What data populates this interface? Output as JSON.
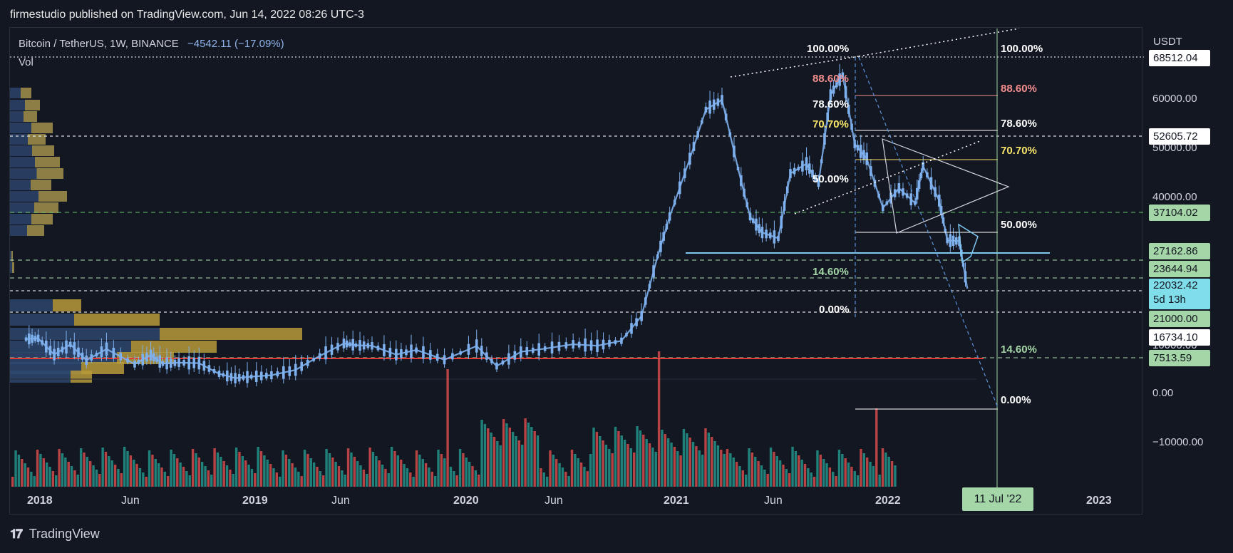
{
  "header": {
    "published": "firmestudio published on TradingView.com, Jun 14, 2022 08:26 UTC-3"
  },
  "legend": {
    "symbol": "Bitcoin / TetherUS, 1W, BINANCE",
    "change": "−4542.11 (−17.09%)",
    "volume_label": "Vol"
  },
  "footer": {
    "brand": "TradingView"
  },
  "colors": {
    "background": "#131722",
    "up": "#7eb0ee",
    "down": "#7eb0ee",
    "vol_up": "#26a69a",
    "vol_down": "#ef5350",
    "fib_green": "#a5d6a7",
    "fib_red": "#f48f8f",
    "fib_yellow": "#f5e56b",
    "support": "#e53935",
    "accent_line": "#80c8f0"
  },
  "chart_data": {
    "type": "candlestick",
    "symbol": "BTCUSDT",
    "interval": "1W",
    "y_unit": "USDT",
    "ylim": [
      -18000,
      72000
    ],
    "y_ticks": [
      "60000.00",
      "50000.00",
      "40000.00",
      "10000.00",
      "0.00",
      "−10000.00"
    ],
    "x_ticks": [
      "2018",
      "Jun",
      "2019",
      "Jun",
      "2020",
      "Jun",
      "2021",
      "Jun",
      "2022",
      "2023"
    ],
    "crosshair_date": "11 Jul '22",
    "price_tags": [
      {
        "value": "68512.04",
        "style": "white"
      },
      {
        "value": "52605.72",
        "style": "white"
      },
      {
        "value": "37104.02",
        "style": "green"
      },
      {
        "value": "27162.86",
        "style": "green"
      },
      {
        "value": "23644.94",
        "style": "green"
      },
      {
        "value": "22032.42",
        "sub": "5d 13h",
        "style": "current"
      },
      {
        "value": "21000.00",
        "style": "green"
      },
      {
        "value": "16734.10",
        "style": "white"
      },
      {
        "value": "7513.59",
        "style": "green"
      }
    ],
    "weekly_close_path": [
      [
        "2017-12-18",
        13800
      ],
      [
        "2018-01-08",
        14200
      ],
      [
        "2018-02-05",
        8200
      ],
      [
        "2018-03-05",
        11000
      ],
      [
        "2018-04-02",
        7000
      ],
      [
        "2018-05-07",
        9400
      ],
      [
        "2018-06-25",
        6200
      ],
      [
        "2018-07-23",
        8100
      ],
      [
        "2018-08-13",
        6300
      ],
      [
        "2018-09-10",
        6500
      ],
      [
        "2018-10-15",
        6400
      ],
      [
        "2018-11-19",
        4200
      ],
      [
        "2018-12-17",
        3300
      ],
      [
        "2019-01-14",
        3600
      ],
      [
        "2019-02-18",
        3900
      ],
      [
        "2019-04-01",
        5000
      ],
      [
        "2019-05-13",
        7900
      ],
      [
        "2019-06-24",
        11500
      ],
      [
        "2019-07-15",
        10600
      ],
      [
        "2019-08-12",
        10300
      ],
      [
        "2019-09-23",
        8200
      ],
      [
        "2019-10-28",
        9200
      ],
      [
        "2019-12-16",
        7100
      ],
      [
        "2020-02-10",
        10200
      ],
      [
        "2020-03-16",
        5800
      ],
      [
        "2020-04-27",
        8800
      ],
      [
        "2020-06-08",
        9500
      ],
      [
        "2020-07-27",
        11100
      ],
      [
        "2020-09-07",
        10300
      ],
      [
        "2020-10-19",
        12900
      ],
      [
        "2020-11-23",
        18800
      ],
      [
        "2020-12-21",
        26500
      ],
      [
        "2021-01-11",
        36000
      ],
      [
        "2021-02-15",
        48000
      ],
      [
        "2021-03-15",
        58000
      ],
      [
        "2021-04-12",
        60000
      ],
      [
        "2021-05-10",
        46000
      ],
      [
        "2021-05-31",
        36000
      ],
      [
        "2021-06-21",
        32000
      ],
      [
        "2021-07-19",
        30500
      ],
      [
        "2021-08-09",
        45000
      ],
      [
        "2021-09-06",
        47000
      ],
      [
        "2021-09-27",
        43000
      ],
      [
        "2021-10-18",
        61000
      ],
      [
        "2021-11-08",
        65000
      ],
      [
        "2021-11-29",
        51000
      ],
      [
        "2021-12-20",
        48000
      ],
      [
        "2022-01-17",
        38000
      ],
      [
        "2022-02-14",
        42000
      ],
      [
        "2022-03-14",
        39000
      ],
      [
        "2022-03-28",
        46500
      ],
      [
        "2022-04-25",
        39500
      ],
      [
        "2022-05-09",
        30000
      ],
      [
        "2022-05-30",
        29800
      ],
      [
        "2022-06-13",
        22032
      ]
    ],
    "volume_note": "weekly volume bars at bottom pane; high weeks near 2020-03 and 2021-05 and 2022-06",
    "fib_left_labels": [
      {
        "text": "100.00%",
        "color": "white"
      },
      {
        "text": "88.60%",
        "color": "red"
      },
      {
        "text": "78.60%",
        "color": "white"
      },
      {
        "text": "70.70%",
        "color": "yellow"
      },
      {
        "text": "50.00%",
        "color": "white"
      },
      {
        "text": "14.60%",
        "color": "green"
      },
      {
        "text": "0.00%",
        "color": "white"
      }
    ],
    "fib_right_labels": [
      {
        "text": "100.00%",
        "color": "white"
      },
      {
        "text": "88.60%",
        "color": "red"
      },
      {
        "text": "78.60%",
        "color": "white"
      },
      {
        "text": "70.70%",
        "color": "yellow"
      },
      {
        "text": "50.00%",
        "color": "white"
      },
      {
        "text": "14.60%",
        "color": "green"
      },
      {
        "text": "0.00%",
        "color": "white"
      }
    ],
    "horizontal_levels": [
      37104.02,
      27162.86,
      23644.94,
      21000.0,
      7513.59
    ],
    "grid": false,
    "legend_placement": "top-left"
  }
}
